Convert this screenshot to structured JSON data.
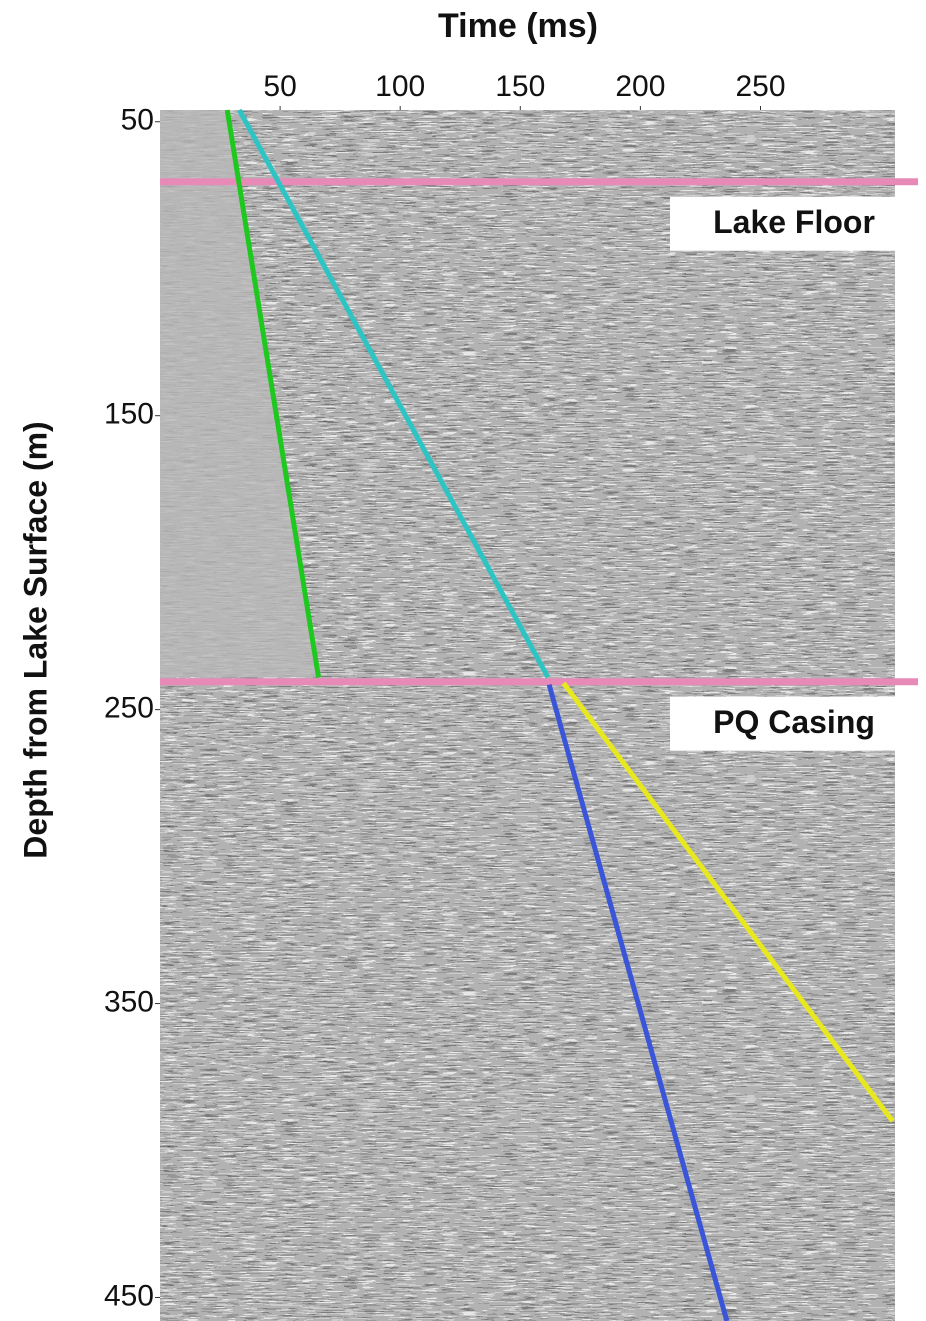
{
  "chart_data": {
    "type": "line",
    "x_label": "Time (ms)",
    "y_label": "Depth from Lake Surface (m)",
    "xlim": [
      0,
      306
    ],
    "xticks": [
      50,
      100,
      150,
      200,
      250
    ],
    "ylim": [
      46,
      458
    ],
    "yticks": [
      50,
      150,
      250,
      350,
      450
    ],
    "y_inverted": true,
    "x_axis_position": "top",
    "grid": false,
    "series": [
      {
        "color": "#1fc81f",
        "x": [
          28,
          66
        ],
        "values": [
          46,
          239
        ]
      },
      {
        "color": "#2ec4c4",
        "x": [
          33,
          161.5
        ],
        "values": [
          46,
          239
        ]
      },
      {
        "color": "#3a55d8",
        "x": [
          162,
          236
        ],
        "values": [
          241.5,
          458
        ]
      },
      {
        "color": "#e8e820",
        "x": [
          168,
          305
        ],
        "values": [
          241,
          390
        ]
      }
    ],
    "hlines": [
      {
        "y": 70.4,
        "label": "Lake Floor",
        "color": "#e88ab8"
      },
      {
        "y": 240.5,
        "label": "PQ Casing",
        "color": "#e88ab8"
      }
    ]
  }
}
